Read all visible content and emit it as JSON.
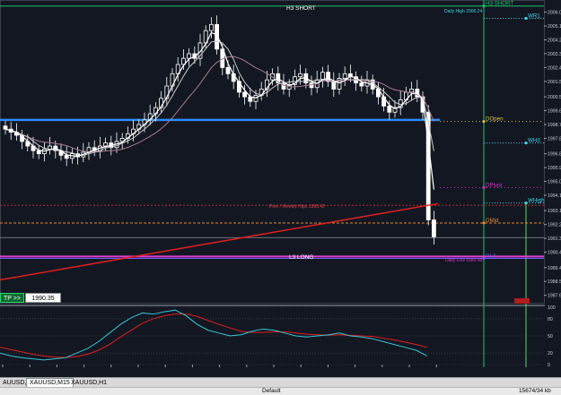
{
  "chart_data": [
    {
      "type": "candlestick",
      "title": "",
      "ylim": [
        1987.0,
        2006.5
      ],
      "y_ticks": [
        "2006.0",
        "2005.1",
        "2004.2",
        "2003.3",
        "2002.4",
        "2001.5",
        "2000.5",
        "1999.6",
        "1998.7",
        "1997.8",
        "1996.8",
        "1995.9",
        "1995.0",
        "1994.1",
        "1993.1",
        "1992.2",
        "1991.3",
        "1990.4",
        "1989.4",
        "1988.5",
        "1987.6"
      ],
      "levels": [
        {
          "name": "H3",
          "label": "H3 SHORT",
          "value": 2006.4,
          "color": "#18c46a"
        },
        {
          "name": "WR1",
          "label": "WR1",
          "value": 2005.6,
          "color": "#3fd4e6"
        },
        {
          "name": "DOpen",
          "label": "DOpen",
          "value": 1998.9,
          "color": "#d8c24a"
        },
        {
          "name": "WH3",
          "label": "WH3",
          "value": 1997.5,
          "color": "#3fd4e6"
        },
        {
          "name": "DPivot",
          "label": "DPivot",
          "value": 1994.6,
          "color": "#cf3ac9"
        },
        {
          "name": "WHigh",
          "label": "WHigh",
          "value": 1993.6,
          "color": "#3fd4e6"
        },
        {
          "name": "DMid",
          "label": "DMid",
          "value": 1992.3,
          "color": "#e08a2a"
        },
        {
          "name": "DL3",
          "label": "DL3",
          "value": 1990.0,
          "color": "#6a5cff"
        }
      ],
      "annotations": [
        {
          "text": "Daily High 2006.24",
          "value": 2006.2,
          "color": "#3fd4e6"
        },
        {
          "text": "Prev / Weekly High 1993.42",
          "value": 1993.4,
          "color": "#e04848"
        },
        {
          "text": "L3 LONG",
          "value": 1990.1,
          "color": "#ffffff"
        },
        {
          "text": "Daily Low 1989.48",
          "value": 1989.5,
          "color": "#cf3ac9"
        }
      ],
      "price_box": {
        "text": "1990.35",
        "value": 1990.35
      },
      "x_ticks": [
        "22 Nov 2021",
        "22 Nov 01:45",
        "22 Nov 02:45",
        "22 Nov 03:45",
        "22 Nov 04:45",
        "22 Nov 05:45",
        "22 Nov 06:45",
        "22 Nov 07:45",
        "22 Nov 08:45",
        "22 Nov 09:45",
        "22 Nov 10:45",
        "22 Nov 11:45",
        "22 Nov 12:45",
        "22 Nov 13:45",
        "22 Nov 14:45",
        "22 Nov 15:45",
        "22 Nov 16:45"
      ]
    },
    {
      "type": "line",
      "title": "",
      "ylim": [
        0,
        100
      ],
      "y_ticks": [
        "100",
        "80",
        "50",
        "20",
        "0"
      ]
    }
  ],
  "ui": {
    "tp_button": "TP >>",
    "tp_value": "1990.35",
    "tabs": [
      "AUUSD,M1",
      "XAUUSD,M15",
      "XAUUSD,H1"
    ],
    "active_tab": 1,
    "status_profile": "Default",
    "status_traffic": "15674/34 kb"
  },
  "colors": {
    "background": "#131722",
    "bull": "#ffffff",
    "bear": "#ffffff",
    "ma1": "#ffffff",
    "ma2": "#c9c9c9",
    "ma3": "#a77a8f",
    "red_ma": "#e02020",
    "blue_line": "#2a8cff",
    "magenta_line": "#e040d0",
    "stoch_main": "#35c6d4",
    "stoch_signal": "#e02020"
  }
}
